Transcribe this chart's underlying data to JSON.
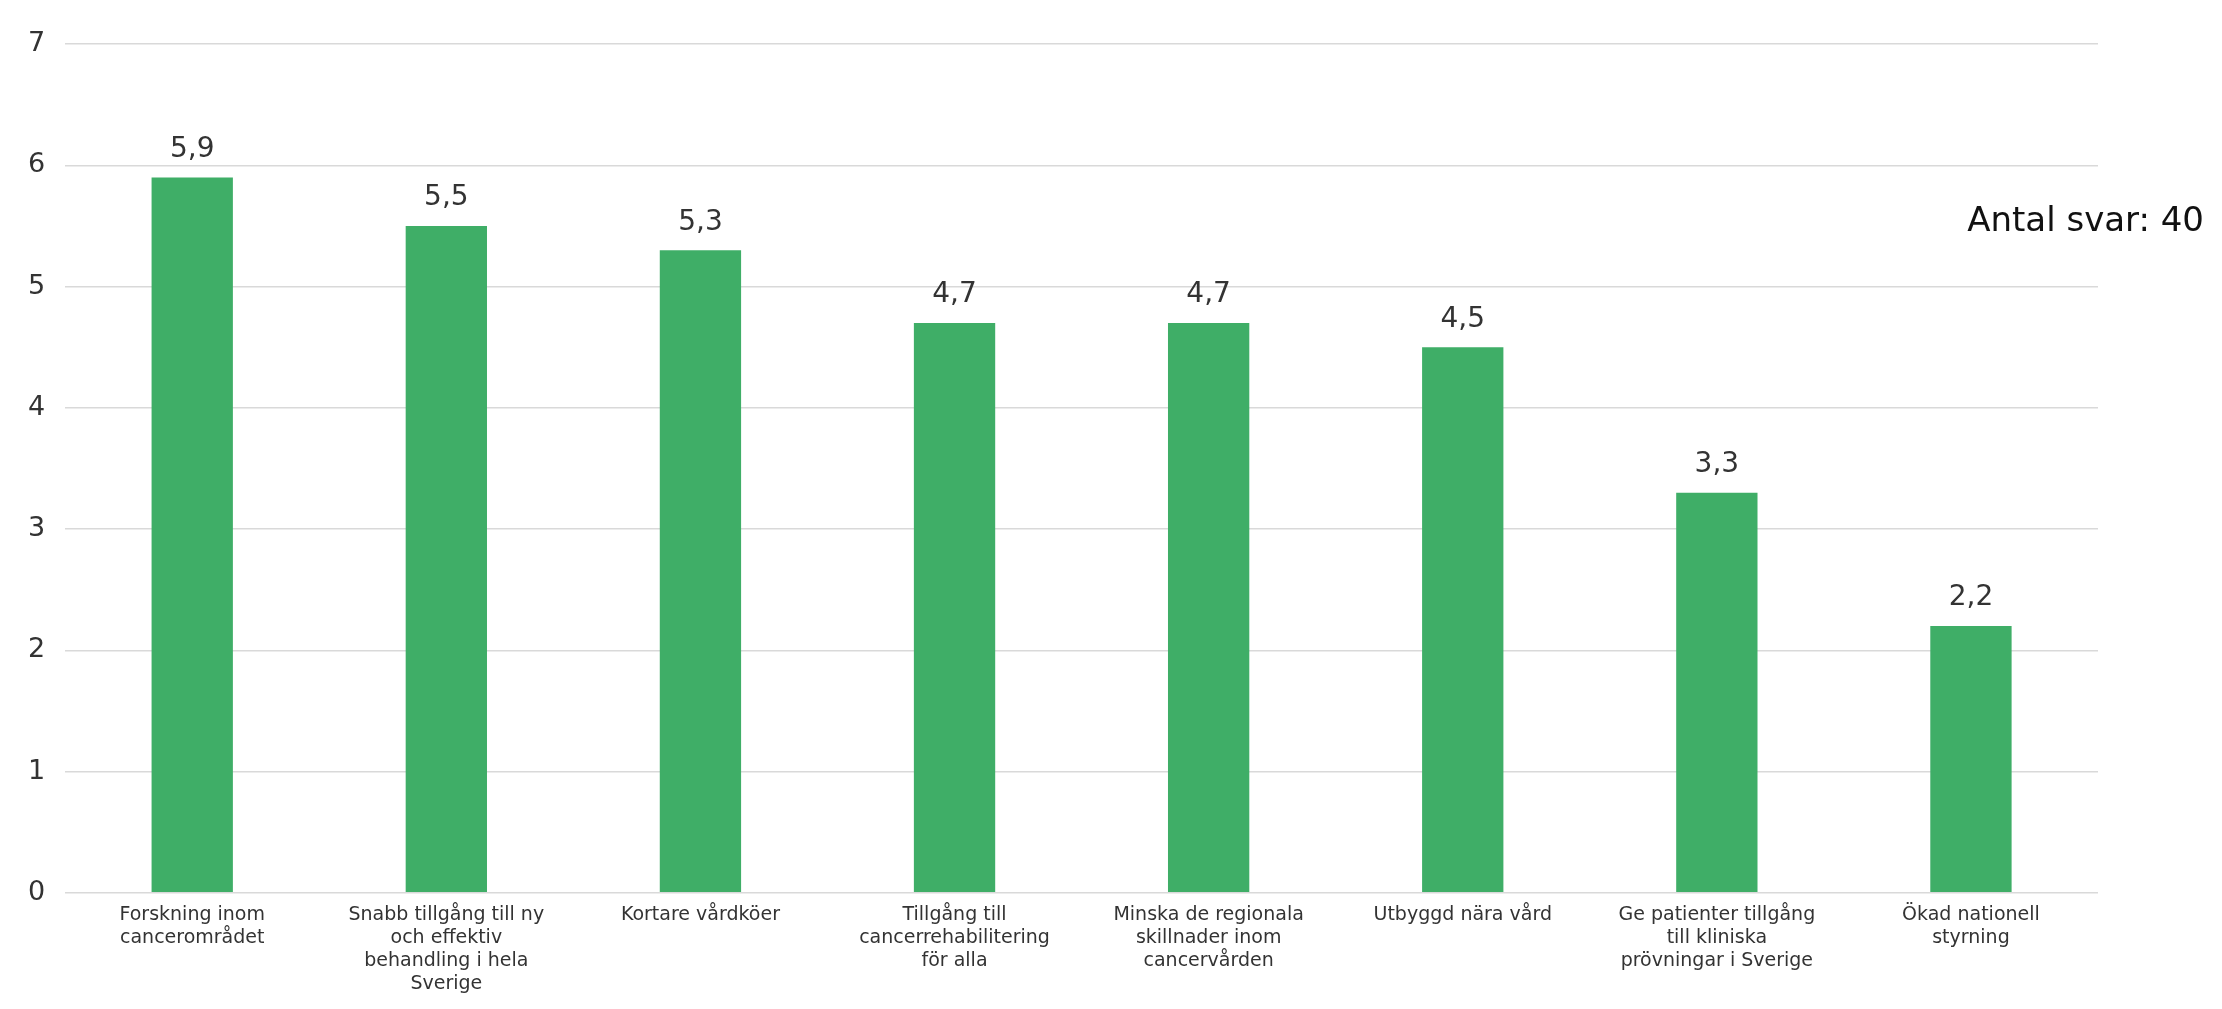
{
  "chart_data": {
    "type": "bar",
    "categories": [
      "Forskning inom cancerområdet",
      "Snabb tillgång till ny och effektiv behandling i hela Sverige",
      "Kortare vårdköer",
      "Tillgång till cancerrehabilitering för alla",
      "Minska de regionala skillnader inom cancervården",
      "Utbyggd nära vård",
      "Ge patienter tillgång till kliniska prövningar i Sverige",
      "Ökad nationell styrning"
    ],
    "values": [
      5.9,
      5.5,
      5.3,
      4.7,
      4.7,
      4.5,
      3.3,
      2.2
    ],
    "value_labels": [
      "5,9",
      "5,5",
      "5,3",
      "4,7",
      "4,7",
      "4,5",
      "3,3",
      "2,2"
    ],
    "color": "#3fae67",
    "ylim": [
      0,
      7
    ],
    "yticks": [
      0,
      1,
      2,
      3,
      4,
      5,
      6,
      7
    ],
    "grid": "y",
    "legend": false,
    "annotations": [
      "Antal svar: 40"
    ]
  }
}
